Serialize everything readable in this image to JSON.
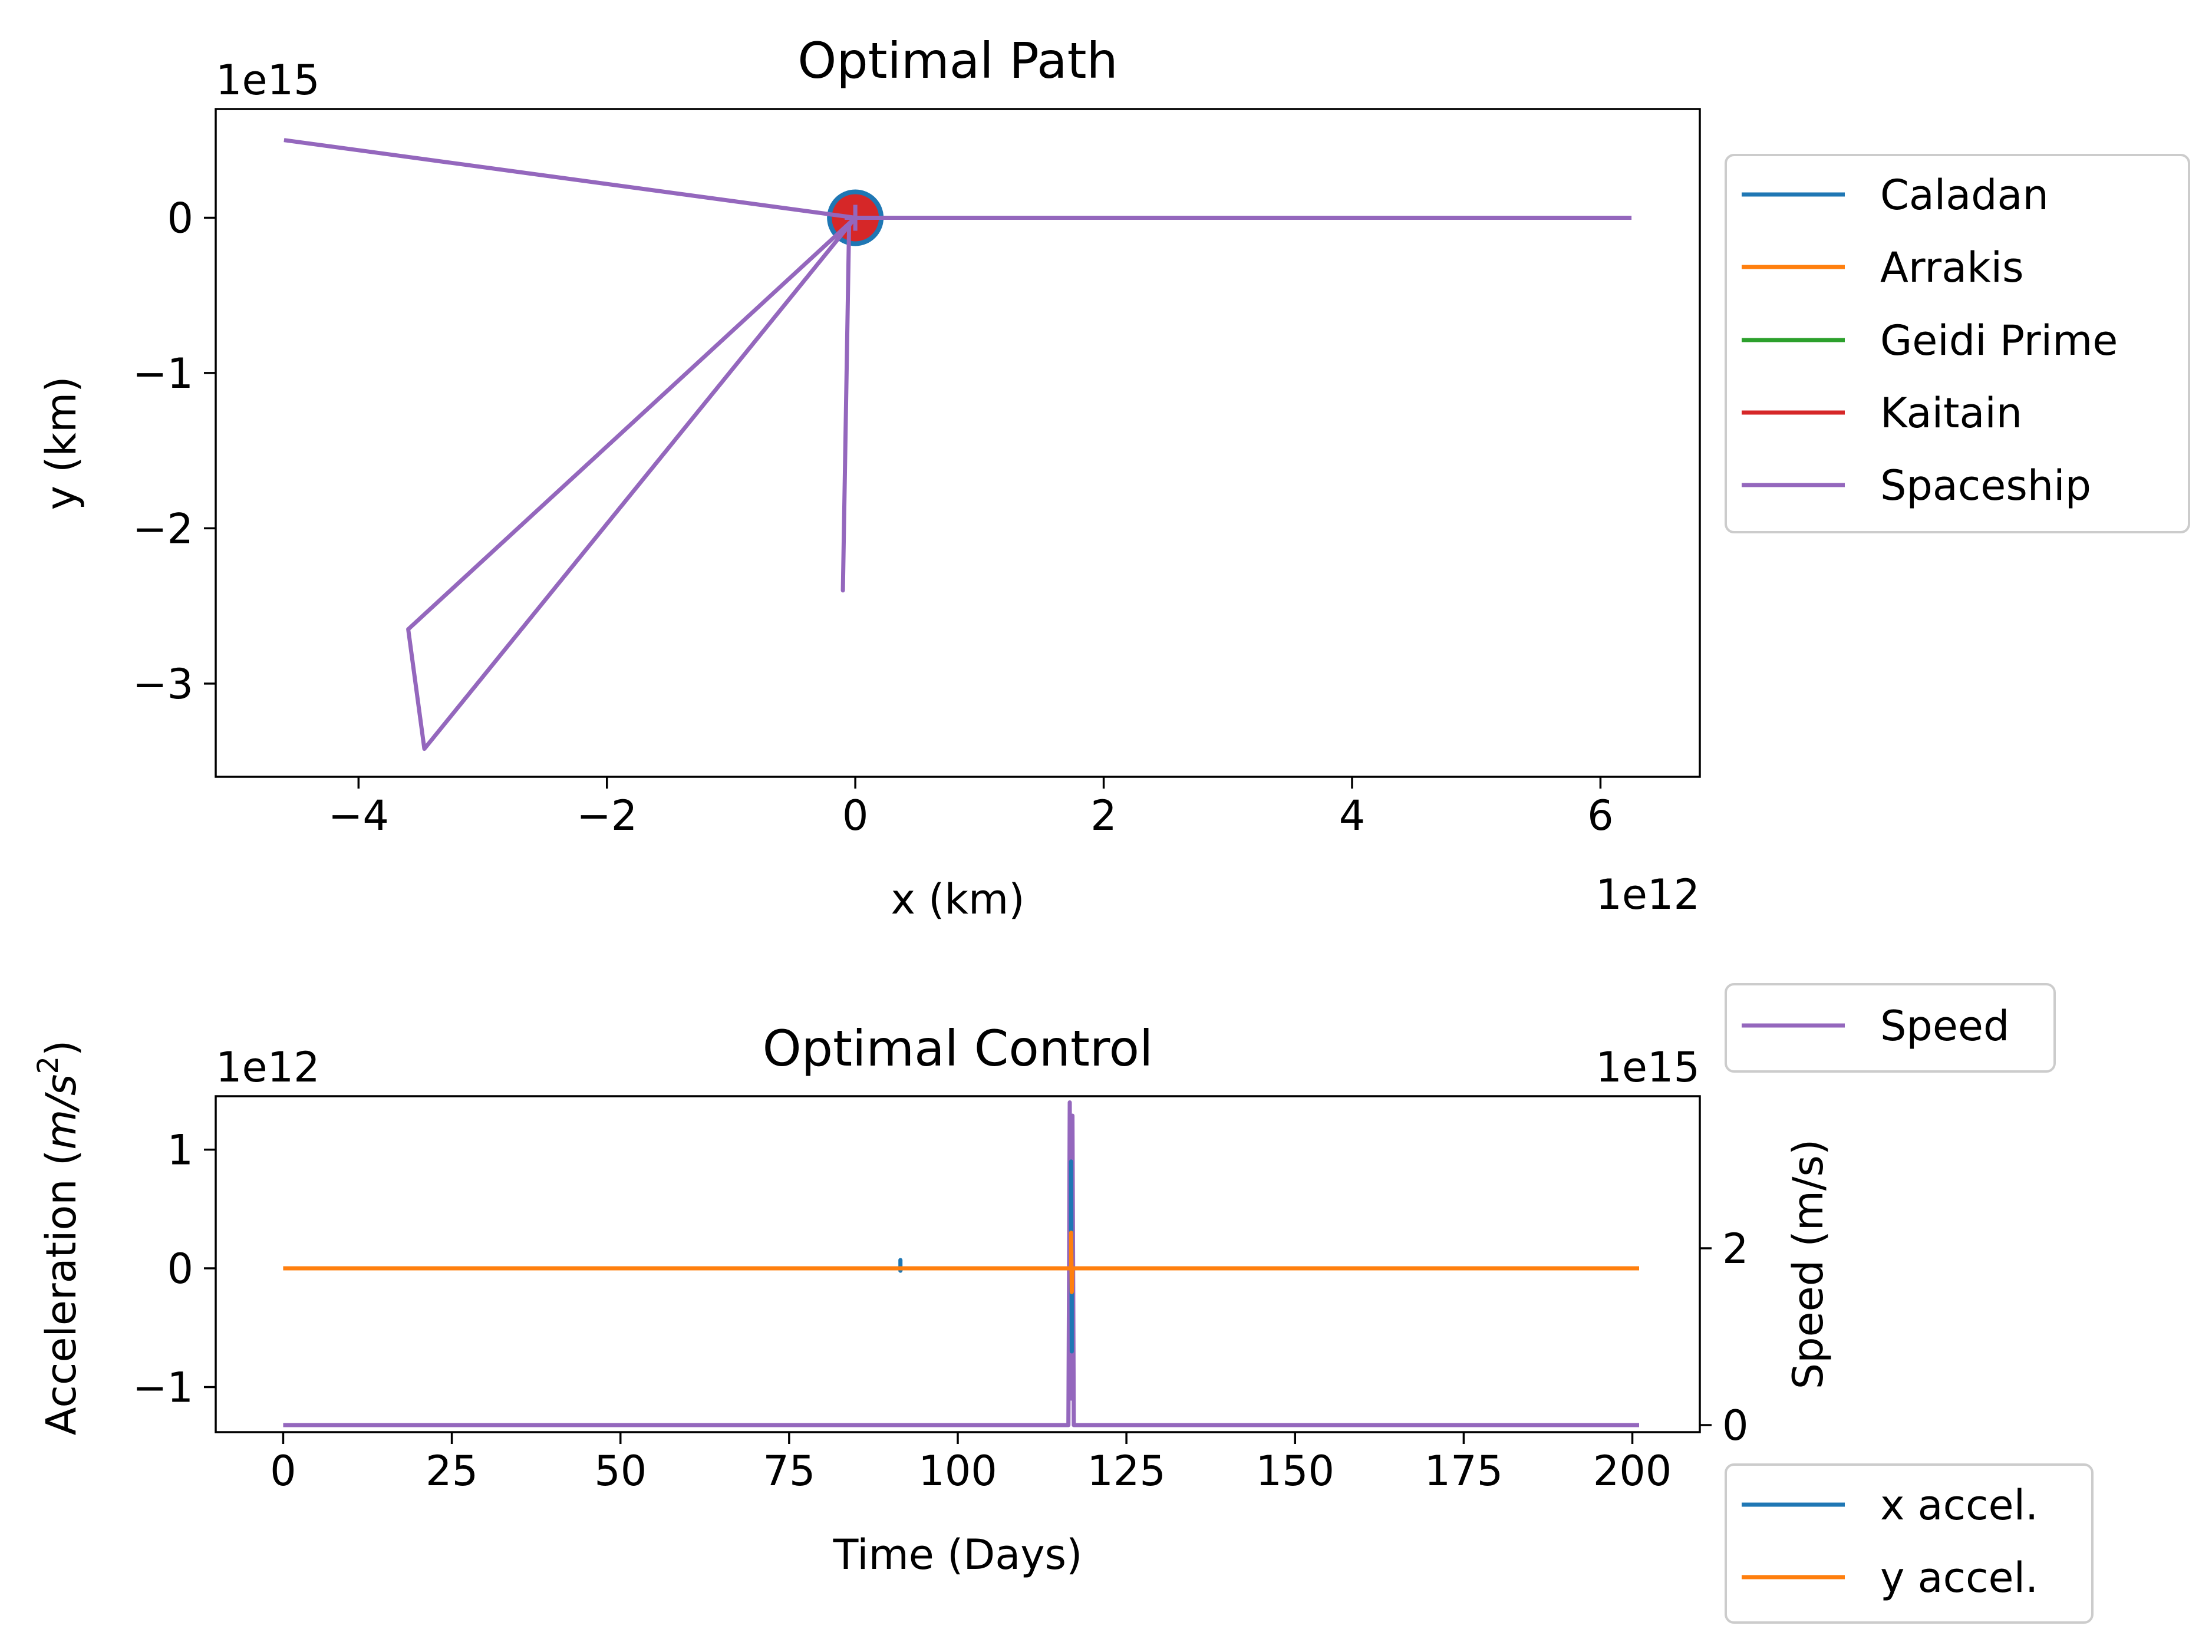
{
  "chart_data": [
    {
      "type": "line",
      "title": "Optimal Path",
      "xlabel": "x (km)",
      "ylabel": "y (km)",
      "x_multiplier_label": "1e12",
      "y_multiplier_label": "1e15",
      "xlim": [
        -5.15,
        6.8
      ],
      "ylim": [
        -3.6,
        0.7
      ],
      "x_ticks": [
        -4,
        -2,
        0,
        2,
        4,
        6
      ],
      "x_tick_labels": [
        "−4",
        "−2",
        "0",
        "2",
        "4",
        "6"
      ],
      "y_ticks": [
        0,
        -1,
        -2,
        -3
      ],
      "y_tick_labels": [
        "0",
        "−1",
        "−2",
        "−3"
      ],
      "legend_location": "outside right, top",
      "legend": [
        "Caladan",
        "Arrakis",
        "Geidi Prime",
        "Kaitain",
        "Spaceship"
      ],
      "series": [
        {
          "name": "Caladan",
          "color": "#1f77b4",
          "x": [
            0
          ],
          "y": [
            0
          ],
          "marker": "circle"
        },
        {
          "name": "Arrakis",
          "color": "#ff7f0e",
          "x": [
            0
          ],
          "y": [
            0
          ]
        },
        {
          "name": "Geidi Prime",
          "color": "#2ca02c",
          "x": [
            0
          ],
          "y": [
            0
          ]
        },
        {
          "name": "Kaitain",
          "color": "#d62728",
          "x": [
            0
          ],
          "y": [
            0
          ],
          "marker": "circle"
        },
        {
          "name": "Spaceship",
          "color": "#9467bd",
          "x": [
            -4.6,
            0,
            -3.6,
            -3.47,
            0,
            -0.05,
            -0.1,
            -0.05,
            0,
            6.25
          ],
          "y": [
            0.5,
            0,
            -2.65,
            -3.42,
            0,
            -0.05,
            -2.4,
            -0.05,
            0,
            0
          ]
        }
      ]
    },
    {
      "type": "line",
      "title": "Optimal Control",
      "xlabel": "Time (Days)",
      "ylabel": "Acceleration (m/s²)",
      "ylabel_main": "Acceleration (",
      "ylabel_math": "m/s",
      "ylabel_sup": "2",
      "ylabel_end": ")",
      "y2label": "Speed (m/s)",
      "y_multiplier_label": "1e12",
      "y2_multiplier_label": "1e15",
      "xlim": [
        -10,
        210
      ],
      "ylim": [
        -1.38,
        1.45
      ],
      "y2lim": [
        -0.08,
        3.72
      ],
      "x_ticks": [
        0,
        25,
        50,
        75,
        100,
        125,
        150,
        175,
        200
      ],
      "x_tick_labels": [
        "0",
        "25",
        "50",
        "75",
        "100",
        "125",
        "150",
        "175",
        "200"
      ],
      "y_ticks": [
        1,
        0,
        -1
      ],
      "y_tick_labels": [
        "1",
        "0",
        "−1"
      ],
      "y2_ticks": [
        2,
        0
      ],
      "y2_tick_labels": [
        "2",
        "0"
      ],
      "legend_speed": [
        "Speed"
      ],
      "legend_accel": [
        "x accel.",
        "y accel."
      ],
      "series": [
        {
          "name": "x accel.",
          "color": "#1f77b4",
          "axis": "left",
          "x": [
            0,
            91.5,
            91.5,
            91.5,
            91.6,
            116.8,
            116.8,
            116.9,
            116.9,
            201
          ],
          "y": [
            0,
            0,
            0.07,
            -0.02,
            0,
            0,
            0.9,
            -0.7,
            0,
            0
          ]
        },
        {
          "name": "y accel.",
          "color": "#ff7f0e",
          "axis": "left",
          "x": [
            0,
            116.8,
            116.8,
            116.9,
            117,
            201
          ],
          "y": [
            0,
            0,
            0.3,
            -0.2,
            0,
            0
          ]
        },
        {
          "name": "Speed",
          "color": "#9467bd",
          "axis": "right",
          "x": [
            0,
            116.4,
            116.6,
            116.8,
            117.0,
            117.2,
            201
          ],
          "y": [
            0,
            0,
            3.65,
            0.3,
            3.5,
            0,
            0
          ]
        }
      ]
    }
  ]
}
